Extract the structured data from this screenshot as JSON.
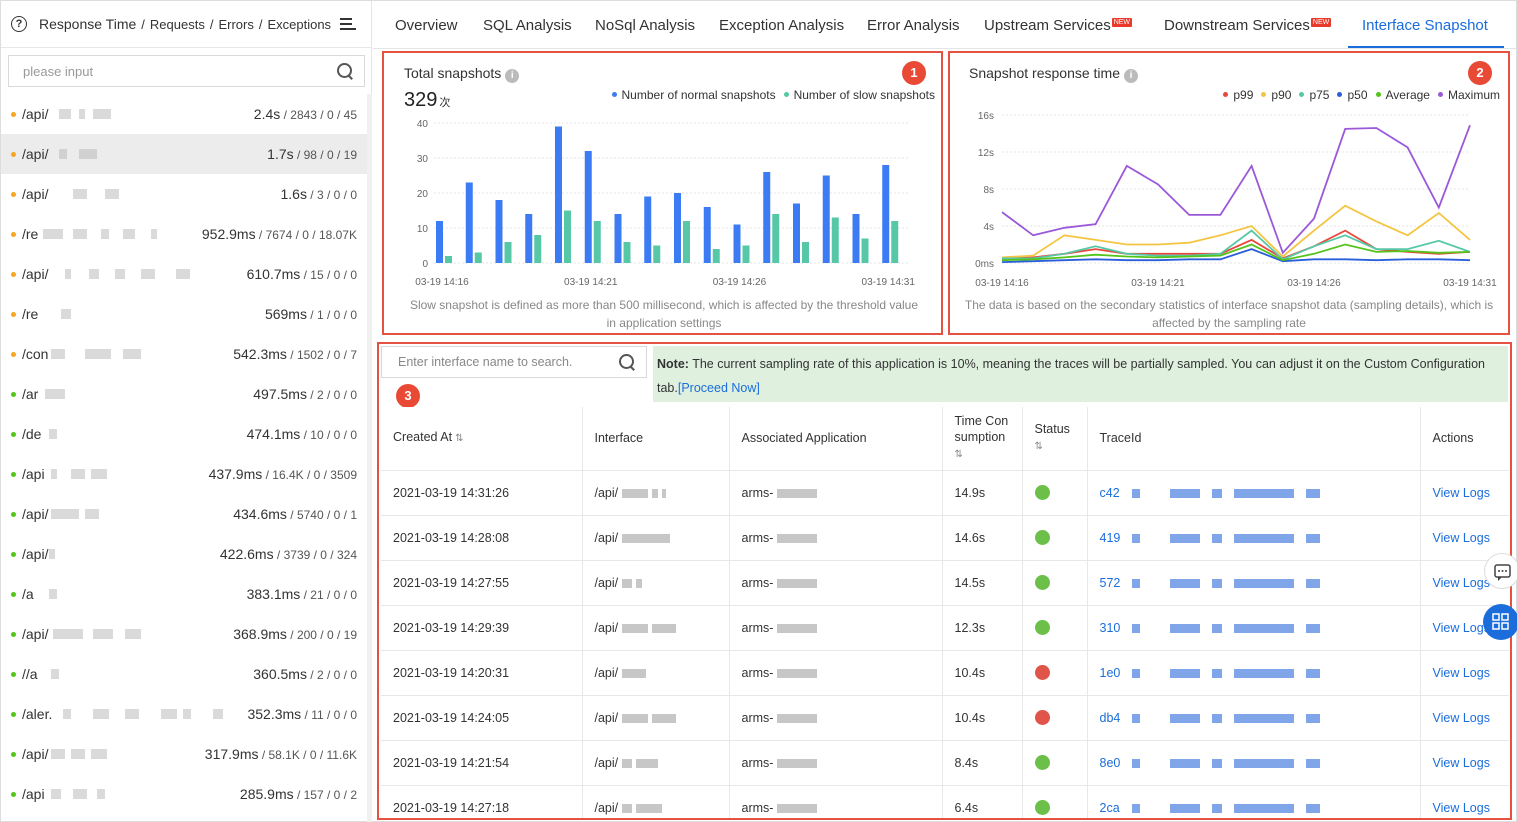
{
  "sidebar": {
    "header": {
      "title": "Response Time",
      "items": [
        "Requests",
        "Errors",
        "Exceptions"
      ],
      "sep": "/"
    },
    "search_placeholder": "please input",
    "list": [
      {
        "path": "/api/",
        "time": "2.4s",
        "stats": " / 2843 / 0 / 45",
        "color": "#f5a623"
      },
      {
        "path": "/api/",
        "time": "1.7s",
        "stats": " / 98 / 0 / 19",
        "color": "#f5a623"
      },
      {
        "path": "/api/",
        "time": "1.6s",
        "stats": " / 3 / 0 / 0",
        "color": "#f5a623"
      },
      {
        "path": "/re",
        "time": "952.9ms",
        "stats": " / 7674 / 0 / 18.07K",
        "color": "#f5a623"
      },
      {
        "path": "/api/",
        "time": "610.7ms",
        "stats": " / 15 / 0 / 0",
        "color": "#f5a623"
      },
      {
        "path": "/re",
        "time": "569ms",
        "stats": " / 1 / 0 / 0",
        "color": "#f5a623"
      },
      {
        "path": "/con",
        "time": "542.3ms",
        "stats": " / 1502 / 0 / 7",
        "color": "#f5a623"
      },
      {
        "path": "/ar",
        "time": "497.5ms",
        "stats": " / 2 / 0 / 0",
        "color": "#52c41a"
      },
      {
        "path": "/de",
        "time": "474.1ms",
        "stats": " / 10 / 0 / 0",
        "color": "#52c41a"
      },
      {
        "path": "/api",
        "time": "437.9ms",
        "stats": " / 16.4K / 0 / 3509",
        "color": "#52c41a"
      },
      {
        "path": "/api/",
        "time": "434.6ms",
        "stats": " / 5740 / 0 / 1",
        "color": "#52c41a"
      },
      {
        "path": "/api/",
        "time": "422.6ms",
        "stats": " / 3739 / 0 / 324",
        "color": "#52c41a"
      },
      {
        "path": "/a",
        "time": "383.1ms",
        "stats": " / 21 / 0 / 0",
        "color": "#52c41a"
      },
      {
        "path": "/api/",
        "time": "368.9ms",
        "stats": " / 200 / 0 / 19",
        "color": "#52c41a"
      },
      {
        "path": "//a",
        "time": "360.5ms",
        "stats": " / 2 / 0 / 0",
        "color": "#52c41a"
      },
      {
        "path": "/aler.",
        "time": "352.3ms",
        "stats": " / 11 / 0 / 0",
        "color": "#52c41a"
      },
      {
        "path": "/api/",
        "time": "317.9ms",
        "stats": " / 58.1K / 0 / 11.6K",
        "color": "#52c41a"
      },
      {
        "path": "/api",
        "time": "285.9ms",
        "stats": " / 157 / 0 / 2",
        "color": "#52c41a"
      }
    ]
  },
  "tabs": [
    {
      "label": "Overview",
      "new": false
    },
    {
      "label": "SQL Analysis",
      "new": false
    },
    {
      "label": "NoSql Analysis",
      "new": false
    },
    {
      "label": "Exception Analysis",
      "new": false
    },
    {
      "label": "Error Analysis",
      "new": false
    },
    {
      "label": "Upstream Services",
      "new": true
    },
    {
      "label": "Downstream Services",
      "new": true
    },
    {
      "label": "Interface Snapshot",
      "new": false
    }
  ],
  "new_badge": "NEW",
  "panel1": {
    "badge": "1",
    "title": "Total snapshots",
    "total_value": "329",
    "total_unit": "次",
    "footnote": "Slow snapshot is defined as more than 500 millisecond, which is affected by the threshold value in application settings"
  },
  "panel2": {
    "badge": "2",
    "title": "Snapshot response time",
    "footnote": "The data is based on the secondary statistics of interface snapshot data (sampling details), which is affected by the sampling rate"
  },
  "chart_data": [
    {
      "type": "bar",
      "title": "Total snapshots",
      "x": [
        "03-19 14:16",
        "03-19 14:17",
        "03-19 14:18",
        "03-19 14:19",
        "03-19 14:20",
        "03-19 14:21",
        "03-19 14:22",
        "03-19 14:23",
        "03-19 14:24",
        "03-19 14:25",
        "03-19 14:26",
        "03-19 14:27",
        "03-19 14:28",
        "03-19 14:29",
        "03-19 14:30",
        "03-19 14:31"
      ],
      "x_tick_labels": [
        "03-19 14:16",
        "03-19 14:21",
        "03-19 14:26",
        "03-19 14:31"
      ],
      "series": [
        {
          "name": "Number of normal snapshots",
          "color": "#3b7bf3",
          "values": [
            12,
            23,
            18,
            14,
            39,
            32,
            14,
            19,
            20,
            16,
            11,
            26,
            17,
            25,
            14,
            28
          ]
        },
        {
          "name": "Number of slow snapshots",
          "color": "#56c8a7",
          "values": [
            2,
            3,
            6,
            8,
            15,
            12,
            6,
            5,
            12,
            4,
            5,
            14,
            6,
            13,
            7,
            12
          ]
        }
      ],
      "ylim": [
        0,
        40
      ],
      "yticks": [
        0,
        10,
        20,
        30,
        40
      ],
      "grid": true,
      "legend": "top-right"
    },
    {
      "type": "line",
      "title": "Snapshot response time",
      "x": [
        "03-19 14:16",
        "03-19 14:17",
        "03-19 14:18",
        "03-19 14:19",
        "03-19 14:20",
        "03-19 14:21",
        "03-19 14:22",
        "03-19 14:23",
        "03-19 14:24",
        "03-19 14:25",
        "03-19 14:26",
        "03-19 14:27",
        "03-19 14:28",
        "03-19 14:29",
        "03-19 14:30",
        "03-19 14:31"
      ],
      "x_tick_labels": [
        "03-19 14:16",
        "03-19 14:21",
        "03-19 14:26",
        "03-19 14:31"
      ],
      "series": [
        {
          "name": "p99",
          "color": "#e8473c",
          "values": [
            0.5,
            0.6,
            1.0,
            1.5,
            1.0,
            1.0,
            1.0,
            1.0,
            2.5,
            0.5,
            1.8,
            3.5,
            1.5,
            1.2,
            1.0,
            1.2
          ]
        },
        {
          "name": "p90",
          "color": "#f4c542",
          "values": [
            0.6,
            0.8,
            3.0,
            2.5,
            2.0,
            2.0,
            2.2,
            3.0,
            4.0,
            0.7,
            3.5,
            6.2,
            4.5,
            3.0,
            5.4,
            2.5
          ]
        },
        {
          "name": "p75",
          "color": "#56c8a7",
          "values": [
            0.5,
            0.5,
            1.0,
            1.8,
            1.0,
            0.8,
            0.8,
            1.0,
            3.5,
            0.4,
            1.8,
            3.0,
            1.5,
            1.5,
            2.4,
            1.2
          ]
        },
        {
          "name": "p50",
          "color": "#2b5fd9",
          "values": [
            0.1,
            0.2,
            0.3,
            0.4,
            0.3,
            0.3,
            0.4,
            0.4,
            1.5,
            0.2,
            0.4,
            0.4,
            0.3,
            0.4,
            0.4,
            0.3
          ]
        },
        {
          "name": "Average",
          "color": "#52c41a",
          "values": [
            0.3,
            0.4,
            0.6,
            0.9,
            0.7,
            0.6,
            0.7,
            0.8,
            2.0,
            0.3,
            1.0,
            2.0,
            1.2,
            1.3,
            1.1,
            1.2
          ]
        },
        {
          "name": "Maximum",
          "color": "#9b59d9",
          "values": [
            5.5,
            3.0,
            3.8,
            4.2,
            10.5,
            8.5,
            5.2,
            5.2,
            10.5,
            1.1,
            4.8,
            14.5,
            14.6,
            12.5,
            6.0,
            14.9
          ]
        }
      ],
      "ylim": [
        0,
        16
      ],
      "yticks": [
        "0ms",
        "4s",
        "8s",
        "12s",
        "16s"
      ],
      "grid": true,
      "legend": "top-right"
    }
  ],
  "panel3": {
    "badge": "3",
    "search_placeholder": "Enter interface name to search.",
    "note_label": "Note:",
    "note_text": " The current sampling rate of this application is 10%, meaning the traces will be partially sampled. You can adjust it on the Custom Configuration tab.",
    "note_link": "[Proceed Now]",
    "columns": [
      "Created At",
      "Interface",
      "Associated Application",
      "Time Con sumption",
      "Status",
      "TraceId",
      "Actions"
    ],
    "rows": [
      {
        "created": "2021-03-19 14:31:26",
        "iface": "/api/",
        "app": "arms-",
        "time": "14.9s",
        "status": "#6cc04a",
        "trace": "c42",
        "action": "View Logs"
      },
      {
        "created": "2021-03-19 14:28:08",
        "iface": "/api/",
        "app": "arms-",
        "time": "14.6s",
        "status": "#6cc04a",
        "trace": "419",
        "action": "View Logs"
      },
      {
        "created": "2021-03-19 14:27:55",
        "iface": "/api/",
        "app": "arms-",
        "time": "14.5s",
        "status": "#6cc04a",
        "trace": "572",
        "action": "View Logs"
      },
      {
        "created": "2021-03-19 14:29:39",
        "iface": "/api/",
        "app": "arms-",
        "time": "12.3s",
        "status": "#6cc04a",
        "trace": "310",
        "action": "View Logs"
      },
      {
        "created": "2021-03-19 14:20:31",
        "iface": "/api/",
        "app": "arms-",
        "time": "10.4s",
        "status": "#e0544a",
        "trace": "1e0",
        "action": "View Logs"
      },
      {
        "created": "2021-03-19 14:24:05",
        "iface": "/api/",
        "app": "arms-",
        "time": "10.4s",
        "status": "#e0544a",
        "trace": "db4",
        "action": "View Logs"
      },
      {
        "created": "2021-03-19 14:21:54",
        "iface": "/api/",
        "app": "arms-",
        "time": "8.4s",
        "status": "#6cc04a",
        "trace": "8e0",
        "action": "View Logs"
      },
      {
        "created": "2021-03-19 14:27:18",
        "iface": "/api/",
        "app": "arms-",
        "time": "6.4s",
        "status": "#6cc04a",
        "trace": "2ca",
        "action": "View Logs"
      }
    ]
  }
}
